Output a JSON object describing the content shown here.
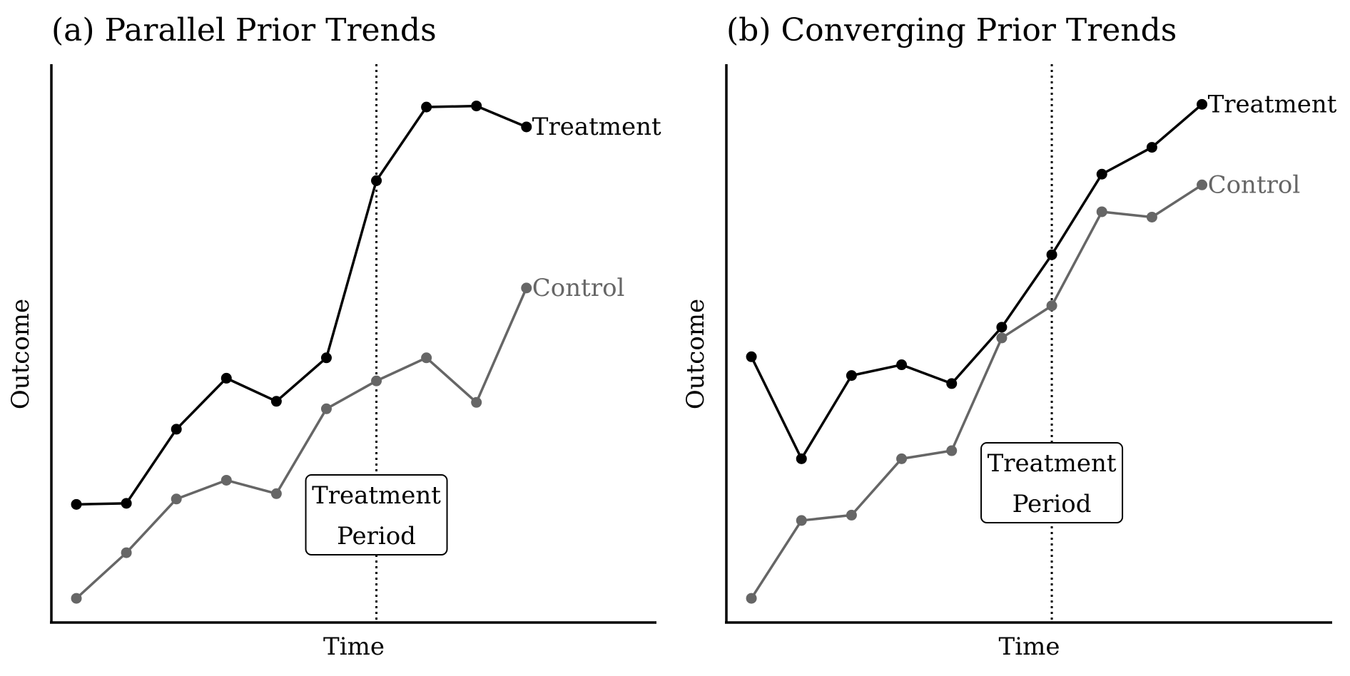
{
  "colors": {
    "treatment": "#000000",
    "control": "#666666",
    "axis": "#000000",
    "background": "#ffffff"
  },
  "chart_data": [
    {
      "type": "line",
      "title": "(a) Parallel Prior Trends",
      "xlabel": "Time",
      "ylabel": "Outcome",
      "x": [
        1,
        2,
        3,
        4,
        5,
        6,
        7,
        8,
        9,
        10
      ],
      "xlim": [
        0.5,
        12.6
      ],
      "ylim": [
        0,
        100
      ],
      "grid": false,
      "legend": "direct labels at line ends",
      "treatment_start": 7,
      "annotation": {
        "line1": "Treatment",
        "line2": "Period"
      },
      "series": [
        {
          "name": "Treatment",
          "color": "#000000",
          "values": [
            22,
            22.2,
            36,
            45.5,
            41.2,
            49.3,
            82.3,
            96,
            96.2,
            92.3
          ]
        },
        {
          "name": "Control",
          "color": "#666666",
          "values": [
            4.5,
            13,
            23,
            26.5,
            24,
            39.8,
            45,
            49.3,
            41,
            62.3
          ]
        }
      ]
    },
    {
      "type": "line",
      "title": "(b) Converging Prior Trends",
      "xlabel": "Time",
      "ylabel": "Outcome",
      "x": [
        1,
        2,
        3,
        4,
        5,
        6,
        7,
        8,
        9,
        10
      ],
      "xlim": [
        0.5,
        12.6
      ],
      "ylim": [
        0,
        100
      ],
      "grid": false,
      "legend": "direct labels at line ends",
      "treatment_start": 7,
      "annotation": {
        "line1": "Treatment",
        "line2": "Period"
      },
      "series": [
        {
          "name": "Treatment",
          "color": "#000000",
          "values": [
            49.5,
            30.5,
            46,
            48,
            44.5,
            55,
            68.5,
            83.5,
            88.5,
            96.5
          ]
        },
        {
          "name": "Control",
          "color": "#666666",
          "values": [
            4.5,
            19,
            20,
            30.5,
            32,
            53,
            59,
            76.5,
            75.5,
            81.5
          ]
        }
      ]
    }
  ]
}
